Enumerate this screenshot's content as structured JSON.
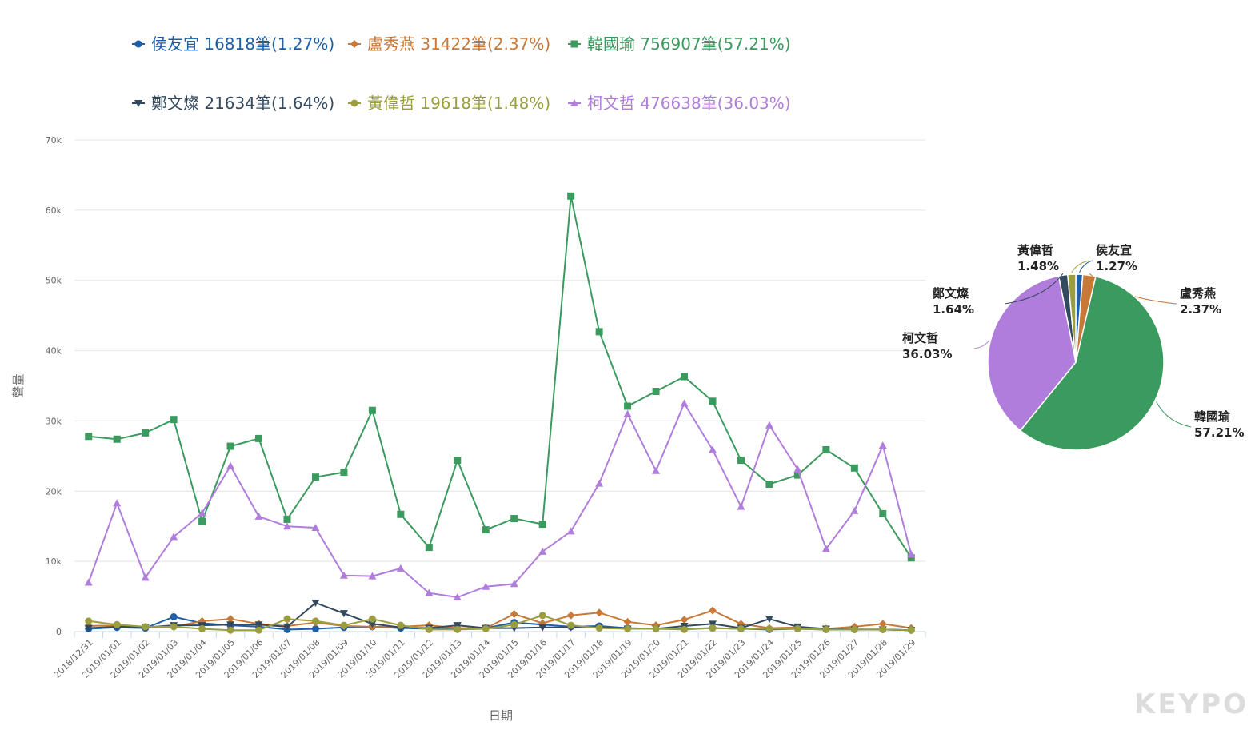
{
  "chart_data": [
    {
      "type": "line",
      "ylabel": "聲量",
      "xlabel": "日期",
      "ylim": [
        0,
        70000
      ],
      "y_ticks": [
        0,
        10000,
        20000,
        30000,
        40000,
        50000,
        60000,
        70000
      ],
      "y_tick_labels": [
        "0",
        "10k",
        "20k",
        "30k",
        "40k",
        "50k",
        "60k",
        "70k"
      ],
      "grid": true,
      "legend_position": "top",
      "categories": [
        "2018/12/31",
        "2019/01/01",
        "2019/01/02",
        "2019/01/03",
        "2019/01/04",
        "2019/01/05",
        "2019/01/06",
        "2019/01/07",
        "2019/01/08",
        "2019/01/09",
        "2019/01/10",
        "2019/01/11",
        "2019/01/12",
        "2019/01/13",
        "2019/01/14",
        "2019/01/15",
        "2019/01/16",
        "2019/01/17",
        "2019/01/18",
        "2019/01/19",
        "2019/01/20",
        "2019/01/21",
        "2019/01/22",
        "2019/01/23",
        "2019/01/24",
        "2019/01/25",
        "2019/01/26",
        "2019/01/27",
        "2019/01/28",
        "2019/01/29"
      ],
      "series": [
        {
          "name": "侯友宜",
          "legend": "侯友宜 16818筆(1.27%)",
          "color": "#1f5fa8",
          "marker": "circle",
          "values": [
            400,
            600,
            500,
            2100,
            1200,
            900,
            700,
            300,
            400,
            600,
            700,
            500,
            400,
            400,
            500,
            1300,
            1000,
            700,
            800,
            500,
            400,
            400,
            500,
            400,
            300,
            400,
            300,
            300,
            300,
            200
          ]
        },
        {
          "name": "盧秀燕",
          "legend": "盧秀燕 31422筆(2.37%)",
          "color": "#c87837",
          "marker": "diamond",
          "values": [
            800,
            900,
            600,
            700,
            1500,
            1800,
            1100,
            800,
            1300,
            800,
            700,
            700,
            900,
            500,
            500,
            2500,
            1200,
            2300,
            2700,
            1400,
            900,
            1700,
            3000,
            1100,
            500,
            600,
            400,
            700,
            1100,
            500
          ]
        },
        {
          "name": "韓國瑜",
          "legend": "韓國瑜 756907筆(57.21%)",
          "color": "#3b9a5e",
          "marker": "square",
          "values": [
            27800,
            27400,
            28300,
            30200,
            15700,
            26400,
            27500,
            16000,
            22000,
            22700,
            31500,
            16700,
            12000,
            24400,
            14500,
            16100,
            15300,
            62000,
            42700,
            32100,
            34200,
            36300,
            32800,
            24400,
            21000,
            22300,
            25900,
            23300,
            16800,
            10500
          ]
        },
        {
          "name": "鄭文燦",
          "legend": "鄭文燦 21634筆(1.64%)",
          "color": "#33495e",
          "marker": "triangle-down",
          "values": [
            500,
            700,
            600,
            900,
            900,
            1000,
            1000,
            700,
            4100,
            2600,
            1100,
            600,
            500,
            900,
            500,
            500,
            600,
            600,
            600,
            400,
            400,
            800,
            1100,
            500,
            1800,
            700,
            400,
            300,
            300,
            200
          ]
        },
        {
          "name": "黃偉哲",
          "legend": "黃偉哲 19618筆(1.48%)",
          "color": "#9a9e3e",
          "marker": "circle",
          "values": [
            1500,
            1000,
            700,
            700,
            400,
            200,
            200,
            1800,
            1500,
            900,
            1800,
            900,
            300,
            300,
            400,
            1000,
            2300,
            900,
            500,
            400,
            400,
            300,
            500,
            400,
            400,
            400,
            300,
            300,
            300,
            200
          ]
        },
        {
          "name": "柯文哲",
          "legend": "柯文哲 476638筆(36.03%)",
          "color": "#b07ddc",
          "marker": "triangle-up",
          "values": [
            7000,
            18300,
            7700,
            13500,
            16900,
            23600,
            16400,
            15000,
            14800,
            8000,
            7900,
            9000,
            5500,
            4900,
            6400,
            6800,
            11400,
            14300,
            21100,
            31000,
            22900,
            32500,
            25900,
            17800,
            29400,
            23100,
            11800,
            17200,
            26500,
            11000
          ]
        }
      ]
    },
    {
      "type": "pie",
      "slices": [
        {
          "name": "侯友宜",
          "percent_label": "1.27%",
          "value": 1.27,
          "color": "#1f5fa8"
        },
        {
          "name": "盧秀燕",
          "percent_label": "2.37%",
          "value": 2.37,
          "color": "#c87837"
        },
        {
          "name": "韓國瑜",
          "percent_label": "57.21%",
          "value": 57.21,
          "color": "#3b9a5e"
        },
        {
          "name": "柯文哲",
          "percent_label": "36.03%",
          "value": 36.03,
          "color": "#b07ddc"
        },
        {
          "name": "鄭文燦",
          "percent_label": "1.64%",
          "value": 1.64,
          "color": "#33495e"
        },
        {
          "name": "黃偉哲",
          "percent_label": "1.48%",
          "value": 1.48,
          "color": "#9a9e3e"
        }
      ]
    }
  ],
  "branding": {
    "watermark": "KEYPO"
  }
}
